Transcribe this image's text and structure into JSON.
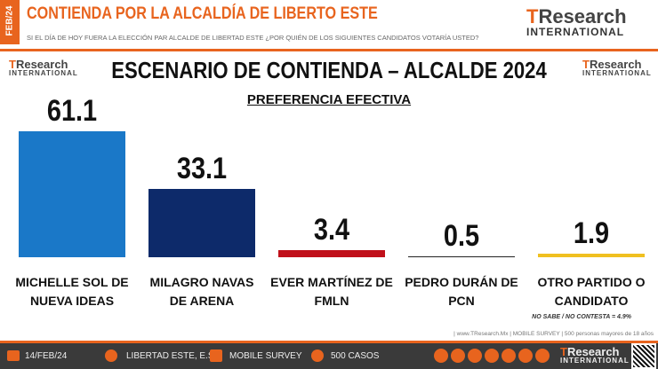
{
  "header": {
    "date": "FEB/24",
    "title": "CONTIENDA POR LA ALCALDÍA DE LIBERTO ESTE",
    "question": "SI EL DÍA DE HOY FUERA LA ELECCIÓN PAR ALCALDE DE LIBERTAD ESTE ¿POR QUIÉN DE LOS SIGUIENTES CANDIDATOS VOTARÍA USTED?",
    "logo": {
      "brand": "TResearch",
      "sub": "INTERNATIONAL"
    }
  },
  "chart_data": {
    "type": "bar",
    "title": "ESCENARIO DE CONTIENDA – ALCALDE 2024",
    "subtitle": "PREFERENCIA EFECTIVA",
    "categories": [
      "MICHELLE SOL DE NUEVA IDEAS",
      "MILAGRO NAVAS DE ARENA",
      "EVER MARTÍNEZ DE FMLN",
      "PEDRO DURÁN DE PCN",
      "OTRO PARTIDO O CANDIDATO"
    ],
    "values": [
      61.1,
      33.1,
      3.4,
      0.5,
      1.9
    ],
    "colors": [
      "#1a78c8",
      "#0d2a6a",
      "#c0101a",
      "#222222",
      "#f0c020"
    ],
    "note": "NO SABE / NO CONTESTA = 4.9%"
  },
  "footer": {
    "credits": "| www.TResearch.Mx | MOBILE SURVEY | 500 personas mayores de 18 años",
    "date": "14/FEB/24",
    "place": "LIBERTAD ESTE, E.S.",
    "method": "MOBILE SURVEY",
    "sample": "500 CASOS"
  }
}
